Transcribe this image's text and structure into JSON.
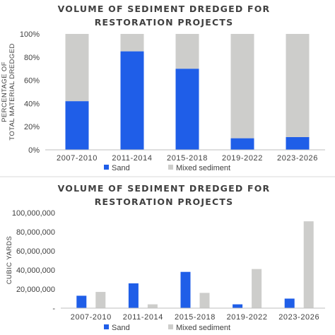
{
  "colors": {
    "sand": "#1f5ee8",
    "mixed": "#cdcdcb",
    "axis": "#bfbfbf",
    "text": "#404040"
  },
  "chart_data": [
    {
      "type": "bar",
      "stacked": true,
      "percent": true,
      "title_lines": [
        "VOLUME OF SEDIMENT DREDGED FOR",
        "RESTORATION PROJECTS"
      ],
      "ylabel_lines": [
        "PERCENTAGE OF",
        "TOTAL MATERIAL DREDGED"
      ],
      "categories": [
        "2007-2010",
        "2011-2014",
        "2015-2018",
        "2019-2022",
        "2023-2026"
      ],
      "series": [
        {
          "name": "Sand",
          "values": [
            42,
            85,
            70,
            10,
            11
          ]
        },
        {
          "name": "Mixed sediment",
          "values": [
            58,
            15,
            30,
            90,
            89
          ]
        }
      ],
      "yticks": [
        "0%",
        "20%",
        "40%",
        "60%",
        "80%",
        "100%"
      ],
      "ylim": [
        0,
        100
      ],
      "legend": "bottom"
    },
    {
      "type": "bar",
      "stacked": false,
      "title_lines": [
        "VOLUME OF SEDIMENT DREDGED FOR",
        "RESTORATION PROJECTS"
      ],
      "ylabel_lines": [
        "CUBIC YARDS"
      ],
      "categories": [
        "2007-2010",
        "2011-2014",
        "2015-2018",
        "2019-2022",
        "2023-2026"
      ],
      "series": [
        {
          "name": "Sand",
          "values": [
            13000000,
            26000000,
            38000000,
            4000000,
            10000000
          ]
        },
        {
          "name": "Mixed sediment",
          "values": [
            17000000,
            4000000,
            16000000,
            41000000,
            91000000
          ]
        }
      ],
      "yticks": [
        "-",
        "20,000,000",
        "40,000,000",
        "60,000,000",
        "80,000,000",
        "100,000,000"
      ],
      "ylim": [
        0,
        100000000
      ],
      "legend": "bottom"
    }
  ]
}
